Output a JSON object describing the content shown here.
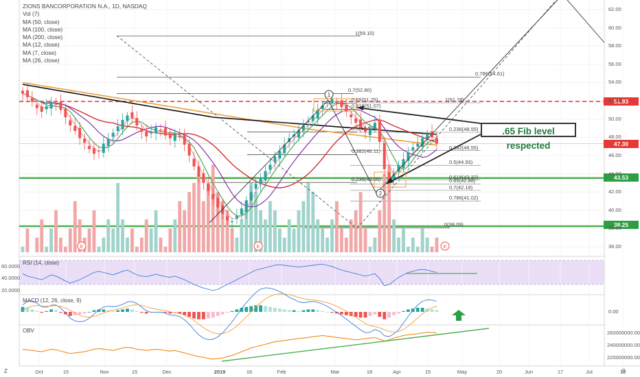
{
  "legend": {
    "title": "ZIONS BANCORPORATION N.A., 1D, NASDAQ",
    "items": [
      "Vol (7)",
      "MA (50, close)",
      "MA (100, close)",
      "MA (200, close)",
      "MA (12, close)",
      "MA (7, close)",
      "MA (26, close)"
    ]
  },
  "panes": {
    "rsi": "RSI (14, close)",
    "macd": "MACD (12, 26, close, 9)",
    "obv": "OBV"
  },
  "annotation": ".65 Fib level respected",
  "price_tags": [
    {
      "label": "51.93",
      "color": "#e53935"
    },
    {
      "label": "47.30",
      "color": "#e53935"
    },
    {
      "label": "43.53",
      "color": "#2e9e44"
    },
    {
      "label": "38.25",
      "color": "#2e9e44"
    }
  ],
  "markers": {
    "one": "1",
    "two": "2",
    "earnings": "E"
  },
  "axis_z": "Z",
  "chart_data": {
    "type": "candlestick",
    "price_ticks": [
      "62.00",
      "60.00",
      "58.00",
      "56.00",
      "54.00",
      "52.00",
      "50.00",
      "48.00",
      "46.00",
      "44.00",
      "42.00",
      "40.00",
      "38.00",
      "36.00"
    ],
    "price_tick_values": [
      62,
      60,
      58,
      56,
      54,
      52,
      50,
      48,
      46,
      44,
      42,
      40,
      38,
      36
    ],
    "rsi_ticks": [
      "60.0000",
      "40.0000",
      "20.0000"
    ],
    "rsi_tick_values": [
      60,
      40,
      20
    ],
    "macd_ticks": [
      "0.00"
    ],
    "obv_ticks": [
      "260000000.0000",
      "240000000.0000",
      "220000000.0000"
    ],
    "obv_tick_values": [
      260000000,
      240000000,
      220000000
    ],
    "x_ticks": [
      "Oct",
      "15",
      "Nov",
      "15",
      "Dec",
      "2019",
      "16",
      "Feb",
      "Mar",
      "18",
      "Apr",
      "15",
      "May",
      "20",
      "Jun",
      "17",
      "Jul",
      "15"
    ],
    "fib_levels": [
      {
        "ratio": "1",
        "value": "59.10"
      },
      {
        "ratio": "0.786",
        "value": "54.61"
      },
      {
        "ratio": "0.7",
        "value": "52.80"
      },
      {
        "ratio": "0.65",
        "value": "51.75"
      },
      {
        "ratio": "0.618",
        "value": "51.07"
      },
      {
        "ratio": "0.5",
        "value": "48.59"
      },
      {
        "ratio": "0.382",
        "value": "46.11"
      },
      {
        "ratio": "0.236",
        "value": "43.05"
      },
      {
        "ratio": "0",
        "value": "38.09"
      }
    ],
    "fib_levels_2": [
      {
        "ratio": "1",
        "value": "51.78"
      },
      {
        "ratio": "0.236",
        "value": "48.55"
      },
      {
        "ratio": "0.382",
        "value": "46.55"
      },
      {
        "ratio": "0.5",
        "value": "44.93"
      },
      {
        "ratio": "0.618",
        "value": "43.32"
      },
      {
        "ratio": "0.65",
        "value": "42.88"
      },
      {
        "ratio": "0.7",
        "value": "42.19"
      },
      {
        "ratio": "0.786",
        "value": "41.02"
      }
    ],
    "horizontal_lines": [
      51.93,
      47.3,
      43.53,
      38.25
    ],
    "close_series": [
      52.8,
      52.4,
      51.9,
      51.2,
      50.8,
      51.4,
      51.9,
      51.6,
      51.0,
      50.2,
      49.3,
      48.7,
      47.9,
      47.4,
      46.7,
      46.2,
      46.5,
      47.3,
      47.8,
      48.5,
      49.2,
      49.9,
      50.4,
      50.1,
      49.3,
      48.6,
      48.1,
      48.6,
      49.1,
      48.8,
      48.2,
      47.9,
      48.3,
      48.0,
      47.2,
      46.0,
      44.8,
      43.7,
      43.0,
      42.1,
      41.2,
      40.3,
      39.6,
      38.9,
      38.8,
      39.4,
      40.2,
      41.1,
      42.0,
      42.9,
      43.6,
      44.3,
      45.0,
      45.9,
      46.5,
      47.2,
      47.9,
      48.3,
      48.8,
      49.3,
      49.8,
      50.4,
      51.0,
      51.5,
      51.9,
      52.2,
      51.8,
      51.3,
      50.8,
      50.2,
      49.6,
      49.0,
      48.6,
      48.9,
      49.6,
      47.5,
      44.5,
      43.2,
      44.0,
      44.9,
      45.6,
      46.3,
      46.9,
      47.3,
      47.9,
      48.3,
      48.0,
      47.3
    ],
    "volume_series": [
      36,
      38,
      35,
      37,
      39,
      36,
      38,
      40,
      37,
      36,
      38,
      41,
      39,
      37,
      38,
      40,
      36,
      37,
      39,
      38,
      43,
      39,
      37,
      38,
      36,
      37,
      39,
      38,
      40,
      37,
      36,
      38,
      39,
      41,
      40,
      42,
      43,
      44,
      41,
      43,
      45,
      42,
      41,
      40,
      38,
      37,
      39,
      41,
      43,
      42,
      40,
      39,
      41,
      40,
      38,
      37,
      39,
      38,
      40,
      41,
      43,
      42,
      39,
      38,
      37,
      39,
      41,
      38,
      37,
      39,
      40,
      42,
      38,
      36,
      37,
      40,
      44,
      45,
      39,
      37,
      38,
      36,
      37,
      36,
      38,
      37,
      36,
      37
    ],
    "rsi_series": [
      48,
      44,
      42,
      40,
      38,
      42,
      46,
      44,
      40,
      36,
      32,
      35,
      38,
      42,
      46,
      50,
      52,
      50,
      48,
      46,
      49,
      52,
      54,
      50,
      46,
      44,
      43,
      45,
      47,
      45,
      43,
      42,
      44,
      41,
      38,
      34,
      30,
      27,
      24,
      22,
      20,
      22,
      26,
      30,
      34,
      38,
      42,
      46,
      50,
      54,
      56,
      58,
      60,
      62,
      63,
      62,
      61,
      60,
      59,
      60,
      61,
      62,
      63,
      64,
      62,
      60,
      57,
      54,
      52,
      50,
      48,
      46,
      44,
      46,
      48,
      40,
      28,
      30,
      36,
      42,
      46,
      50,
      52,
      54,
      55,
      54,
      52,
      50
    ],
    "macd_hist": [
      0.6,
      0.5,
      0.3,
      0.1,
      -0.1,
      0.1,
      0.3,
      0.2,
      -0.1,
      -0.3,
      -0.5,
      -0.4,
      -0.3,
      -0.2,
      0.0,
      0.2,
      0.3,
      0.3,
      0.2,
      0.1,
      0.2,
      0.3,
      0.4,
      0.3,
      0.1,
      -0.1,
      -0.2,
      -0.1,
      0.0,
      0.0,
      -0.1,
      -0.2,
      -0.1,
      -0.2,
      -0.4,
      -0.6,
      -0.8,
      -0.9,
      -0.9,
      -0.8,
      -0.7,
      -0.5,
      -0.3,
      -0.1,
      0.1,
      0.3,
      0.5,
      0.6,
      0.7,
      0.8,
      0.8,
      0.7,
      0.6,
      0.5,
      0.4,
      0.3,
      0.2,
      0.2,
      0.1,
      0.2,
      0.3,
      0.3,
      0.2,
      0.1,
      0.0,
      -0.1,
      -0.2,
      -0.3,
      -0.4,
      -0.5,
      -0.6,
      -0.7,
      -0.7,
      -0.5,
      -0.3,
      -0.6,
      -0.9,
      -0.7,
      -0.4,
      -0.2,
      0.1,
      0.3,
      0.4,
      0.5,
      0.5,
      0.4,
      0.3,
      0.2
    ],
    "obv_series": [
      234,
      233,
      232,
      231,
      230,
      232,
      234,
      233,
      231,
      229,
      227,
      228,
      229,
      230,
      232,
      234,
      235,
      234,
      233,
      232,
      234,
      236,
      237,
      236,
      234,
      233,
      232,
      233,
      234,
      233,
      232,
      231,
      232,
      230,
      228,
      226,
      224,
      222,
      221,
      219,
      218,
      219,
      220,
      222,
      224,
      227,
      230,
      233,
      236,
      238,
      240,
      242,
      244,
      246,
      247,
      248,
      249,
      250,
      251,
      252,
      253,
      254,
      255,
      256,
      255,
      254,
      253,
      252,
      251,
      250,
      249,
      250,
      251,
      252,
      253,
      250,
      247,
      249,
      252,
      254,
      256,
      257,
      258,
      259,
      260,
      261,
      261,
      260
    ]
  }
}
